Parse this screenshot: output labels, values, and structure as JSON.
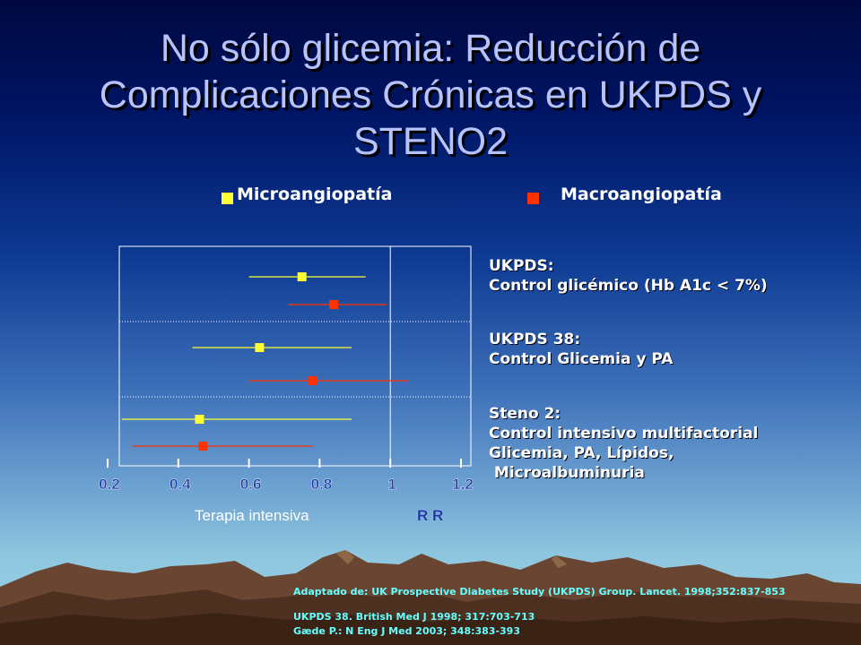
{
  "slide": {
    "title": "No sólo glicemia: Reducción de Complicaciones Crónicas en UKPDS y STENO2",
    "xlabel": "Terapia intensiva",
    "rr_label": "R R"
  },
  "legend": {
    "micro": "Microangiopatía",
    "macro": "Macroangiopatía"
  },
  "groups": [
    {
      "heading": "UKPDS:",
      "lines": [
        "Control glicémico (Hb A1c < 7%)"
      ]
    },
    {
      "heading": "UKPDS 38:",
      "lines": [
        "Control Glicemia y PA"
      ]
    },
    {
      "heading": "Steno 2:",
      "lines": [
        "Control intensivo multifactorial",
        "Glicemia, PA, Lípidos,",
        " Microalbuminuria"
      ]
    }
  ],
  "references": [
    "Adaptado de: UK Prospective Diabetes Study (UKPDS) Group. Lancet. 1998;352:837-853",
    "UKPDS 38.  British Med J 1998;  317:703-713",
    "Gæde P.: N Eng J Med 2003; 348:383-393"
  ],
  "colors": {
    "micro": "#ffff33",
    "macro": "#ff3300",
    "title": "#b7c3ff",
    "tick_label": "#1a3aa8",
    "reference_text": "#66ffff"
  },
  "chart_data": {
    "type": "forest",
    "title": "",
    "xlabel": "Terapia intensiva",
    "ylabel": "",
    "xlim": [
      0.2,
      1.2
    ],
    "x_ticks": [
      "0.2",
      "0.4",
      "0.6",
      "0.8",
      "1",
      "1.2"
    ],
    "reference_line": 1,
    "series": [
      {
        "name": "Microangiopatía",
        "color": "#ffff33",
        "points": [
          {
            "group": "UKPDS",
            "estimate": 0.75,
            "lower": 0.6,
            "upper": 0.93
          },
          {
            "group": "UKPDS 38",
            "estimate": 0.63,
            "lower": 0.44,
            "upper": 0.89
          },
          {
            "group": "Steno 2",
            "estimate": 0.46,
            "lower": 0.24,
            "upper": 0.89
          }
        ]
      },
      {
        "name": "Macroangiopatía",
        "color": "#ff3300",
        "points": [
          {
            "group": "UKPDS",
            "estimate": 0.84,
            "lower": 0.71,
            "upper": 0.99
          },
          {
            "group": "UKPDS 38",
            "estimate": 0.78,
            "lower": 0.6,
            "upper": 1.05
          },
          {
            "group": "Steno 2",
            "estimate": 0.47,
            "lower": 0.27,
            "upper": 0.78
          }
        ]
      }
    ]
  }
}
